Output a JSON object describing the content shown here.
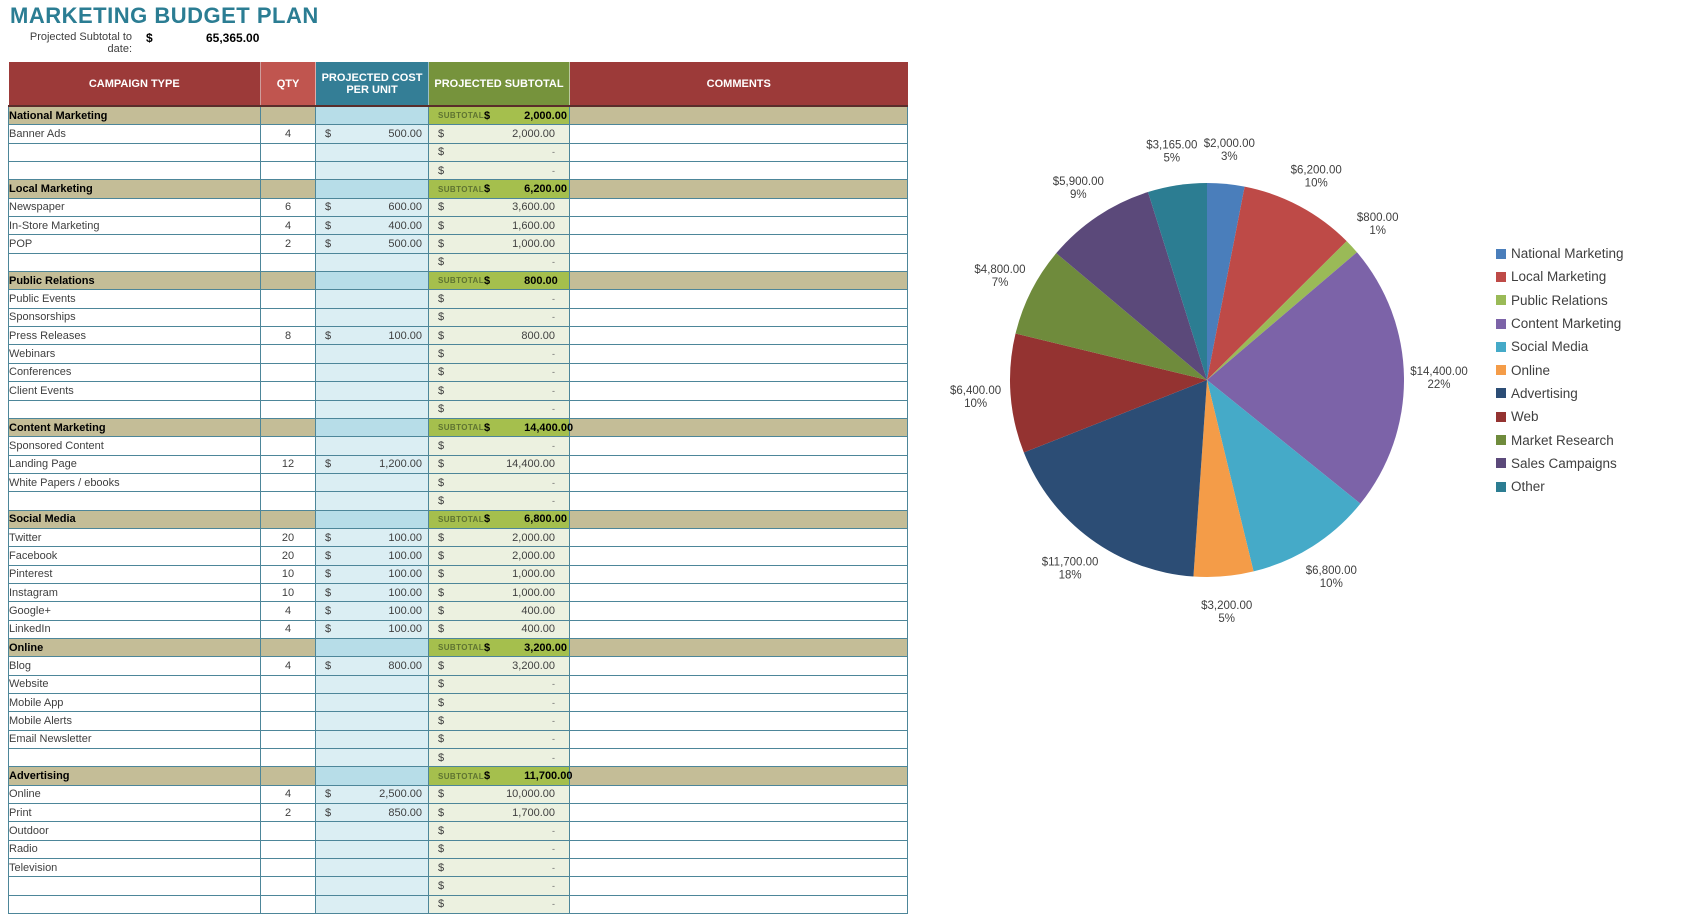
{
  "page": {
    "title": "MARKETING BUDGET PLAN"
  },
  "summary": {
    "label": "Projected Subtotal to date:",
    "currency": "$",
    "value": "65,365.00"
  },
  "theme": {
    "title_color": "#2b7d93",
    "header_red": "#9c3a39",
    "header_red_light": "#c0554f",
    "header_teal": "#347e96",
    "header_green": "#76933c",
    "section_tan": "#c4bd97",
    "section_cost_blue": "#b7dde8",
    "section_subtotal_green": "#a5bf4d",
    "subtotal_label_green": "#5e7331",
    "cost_column_blue": "#dbeef3",
    "subtotal_column_green": "#ecf1e0",
    "grid_border": "#4d8699"
  },
  "table": {
    "headers": [
      "CAMPAIGN TYPE",
      "QTY",
      "PROJECTED COST PER UNIT",
      "PROJECTED SUBTOTAL",
      "COMMENTS"
    ],
    "subtotal_label": "SUBTOTAL",
    "currency": "$",
    "sections": [
      {
        "name": "National Marketing",
        "subtotal": "2,000.00",
        "rows": [
          {
            "name": "Banner Ads",
            "qty": "4",
            "cost": "500.00",
            "subtotal": "2,000.00"
          },
          {
            "name": "",
            "qty": "",
            "cost": "",
            "subtotal": "-"
          },
          {
            "name": "",
            "qty": "",
            "cost": "",
            "subtotal": "-"
          }
        ]
      },
      {
        "name": "Local Marketing",
        "subtotal": "6,200.00",
        "rows": [
          {
            "name": "Newspaper",
            "qty": "6",
            "cost": "600.00",
            "subtotal": "3,600.00"
          },
          {
            "name": "In-Store Marketing",
            "qty": "4",
            "cost": "400.00",
            "subtotal": "1,600.00"
          },
          {
            "name": "POP",
            "qty": "2",
            "cost": "500.00",
            "subtotal": "1,000.00"
          },
          {
            "name": "",
            "qty": "",
            "cost": "",
            "subtotal": "-"
          }
        ]
      },
      {
        "name": "Public Relations",
        "subtotal": "800.00",
        "rows": [
          {
            "name": "Public Events",
            "qty": "",
            "cost": "",
            "subtotal": "-"
          },
          {
            "name": "Sponsorships",
            "qty": "",
            "cost": "",
            "subtotal": "-"
          },
          {
            "name": "Press Releases",
            "qty": "8",
            "cost": "100.00",
            "subtotal": "800.00"
          },
          {
            "name": "Webinars",
            "qty": "",
            "cost": "",
            "subtotal": "-"
          },
          {
            "name": "Conferences",
            "qty": "",
            "cost": "",
            "subtotal": "-"
          },
          {
            "name": "Client Events",
            "qty": "",
            "cost": "",
            "subtotal": "-"
          },
          {
            "name": "",
            "qty": "",
            "cost": "",
            "subtotal": "-"
          }
        ]
      },
      {
        "name": "Content Marketing",
        "subtotal": "14,400.00",
        "rows": [
          {
            "name": "Sponsored Content",
            "qty": "",
            "cost": "",
            "subtotal": "-"
          },
          {
            "name": "Landing Page",
            "qty": "12",
            "cost": "1,200.00",
            "subtotal": "14,400.00"
          },
          {
            "name": "White Papers / ebooks",
            "qty": "",
            "cost": "",
            "subtotal": "-"
          },
          {
            "name": "",
            "qty": "",
            "cost": "",
            "subtotal": "-"
          }
        ]
      },
      {
        "name": "Social Media",
        "subtotal": "6,800.00",
        "rows": [
          {
            "name": "Twitter",
            "qty": "20",
            "cost": "100.00",
            "subtotal": "2,000.00"
          },
          {
            "name": "Facebook",
            "qty": "20",
            "cost": "100.00",
            "subtotal": "2,000.00"
          },
          {
            "name": "Pinterest",
            "qty": "10",
            "cost": "100.00",
            "subtotal": "1,000.00"
          },
          {
            "name": "Instagram",
            "qty": "10",
            "cost": "100.00",
            "subtotal": "1,000.00"
          },
          {
            "name": "Google+",
            "qty": "4",
            "cost": "100.00",
            "subtotal": "400.00"
          },
          {
            "name": "LinkedIn",
            "qty": "4",
            "cost": "100.00",
            "subtotal": "400.00"
          }
        ]
      },
      {
        "name": "Online",
        "subtotal": "3,200.00",
        "rows": [
          {
            "name": "Blog",
            "qty": "4",
            "cost": "800.00",
            "subtotal": "3,200.00"
          },
          {
            "name": "Website",
            "qty": "",
            "cost": "",
            "subtotal": "-"
          },
          {
            "name": "Mobile App",
            "qty": "",
            "cost": "",
            "subtotal": "-"
          },
          {
            "name": "Mobile Alerts",
            "qty": "",
            "cost": "",
            "subtotal": "-"
          },
          {
            "name": "Email Newsletter",
            "qty": "",
            "cost": "",
            "subtotal": "-"
          },
          {
            "name": "",
            "qty": "",
            "cost": "",
            "subtotal": "-"
          }
        ]
      },
      {
        "name": "Advertising",
        "subtotal": "11,700.00",
        "rows": [
          {
            "name": "Online",
            "qty": "4",
            "cost": "2,500.00",
            "subtotal": "10,000.00"
          },
          {
            "name": "Print",
            "qty": "2",
            "cost": "850.00",
            "subtotal": "1,700.00"
          },
          {
            "name": "Outdoor",
            "qty": "",
            "cost": "",
            "subtotal": "-"
          },
          {
            "name": "Radio",
            "qty": "",
            "cost": "",
            "subtotal": "-"
          },
          {
            "name": "Television",
            "qty": "",
            "cost": "",
            "subtotal": "-"
          },
          {
            "name": "",
            "qty": "",
            "cost": "",
            "subtotal": "-"
          },
          {
            "name": "",
            "qty": "",
            "cost": "",
            "subtotal": "-"
          }
        ]
      }
    ]
  },
  "chart_data": {
    "type": "pie",
    "labels": [
      "National Marketing",
      "Local Marketing",
      "Public Relations",
      "Content Marketing",
      "Social Media",
      "Online",
      "Advertising",
      "Web",
      "Market Research",
      "Sales Campaigns",
      "Other"
    ],
    "values": [
      2000,
      6200,
      800,
      14400,
      6800,
      3200,
      11700,
      6400,
      4800,
      5900,
      3165
    ],
    "display_values": [
      "$2,000.00",
      "$6,200.00",
      "$800.00",
      "$14,400.00",
      "$6,800.00",
      "$3,200.00",
      "$11,700.00",
      "$6,400.00",
      "$4,800.00",
      "$5,900.00",
      "$3,165.00"
    ],
    "percent_labels": [
      "3%",
      "10%",
      "1%",
      "22%",
      "10%",
      "5%",
      "18%",
      "10%",
      "7%",
      "9%",
      "5%"
    ],
    "colors": [
      "#4a7ebb",
      "#be4a47",
      "#9aba57",
      "#7c63a8",
      "#45aac8",
      "#f49c48",
      "#2c4d75",
      "#943331",
      "#6f8b3c",
      "#5b497a",
      "#2c7d92"
    ],
    "total": 65365,
    "start_angle_deg": 0,
    "direction": "clockwise",
    "legend_position": "right"
  }
}
